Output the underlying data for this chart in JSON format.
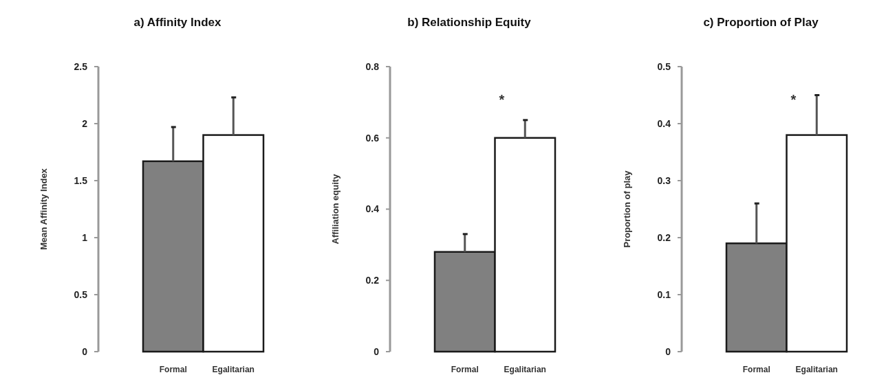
{
  "chart_data": [
    {
      "type": "bar",
      "title": "a)  Affinity Index",
      "ylabel": "Mean Affinity Index",
      "categories": [
        "Formal",
        "Egalitarian"
      ],
      "values": [
        1.67,
        1.9
      ],
      "colors": [
        "#808080",
        "#ffffff"
      ],
      "errors": [
        [
          1.67,
          1.97
        ],
        [
          1.9,
          2.23
        ]
      ],
      "ylim": [
        0,
        2.5
      ],
      "yticks": [
        0,
        0.5,
        1,
        1.5,
        2,
        2.5
      ],
      "grid": false
    },
    {
      "type": "bar",
      "title": "b)  Relationship Equity",
      "ylabel": "Affiliation equity",
      "categories": [
        "Formal",
        "Egalitarian"
      ],
      "values": [
        0.28,
        0.6
      ],
      "colors": [
        "#808080",
        "#ffffff"
      ],
      "errors": [
        [
          0.28,
          0.33
        ],
        [
          0.6,
          0.65
        ]
      ],
      "ylim": [
        0,
        0.8
      ],
      "yticks": [
        0,
        0.2,
        0.4,
        0.6,
        0.8
      ],
      "grid": false,
      "annotations": [
        "*"
      ]
    },
    {
      "type": "bar",
      "title": "c)  Proportion of Play",
      "ylabel": "Proportion of play",
      "categories": [
        "Formal",
        "Egalitarian"
      ],
      "values": [
        0.19,
        0.38
      ],
      "colors": [
        "#808080",
        "#ffffff"
      ],
      "errors": [
        [
          0.19,
          0.26
        ],
        [
          0.38,
          0.45
        ]
      ],
      "ylim": [
        0,
        0.5
      ],
      "yticks": [
        0,
        0.1,
        0.2,
        0.3,
        0.4,
        0.5
      ],
      "grid": false,
      "annotations": [
        "*"
      ]
    }
  ]
}
